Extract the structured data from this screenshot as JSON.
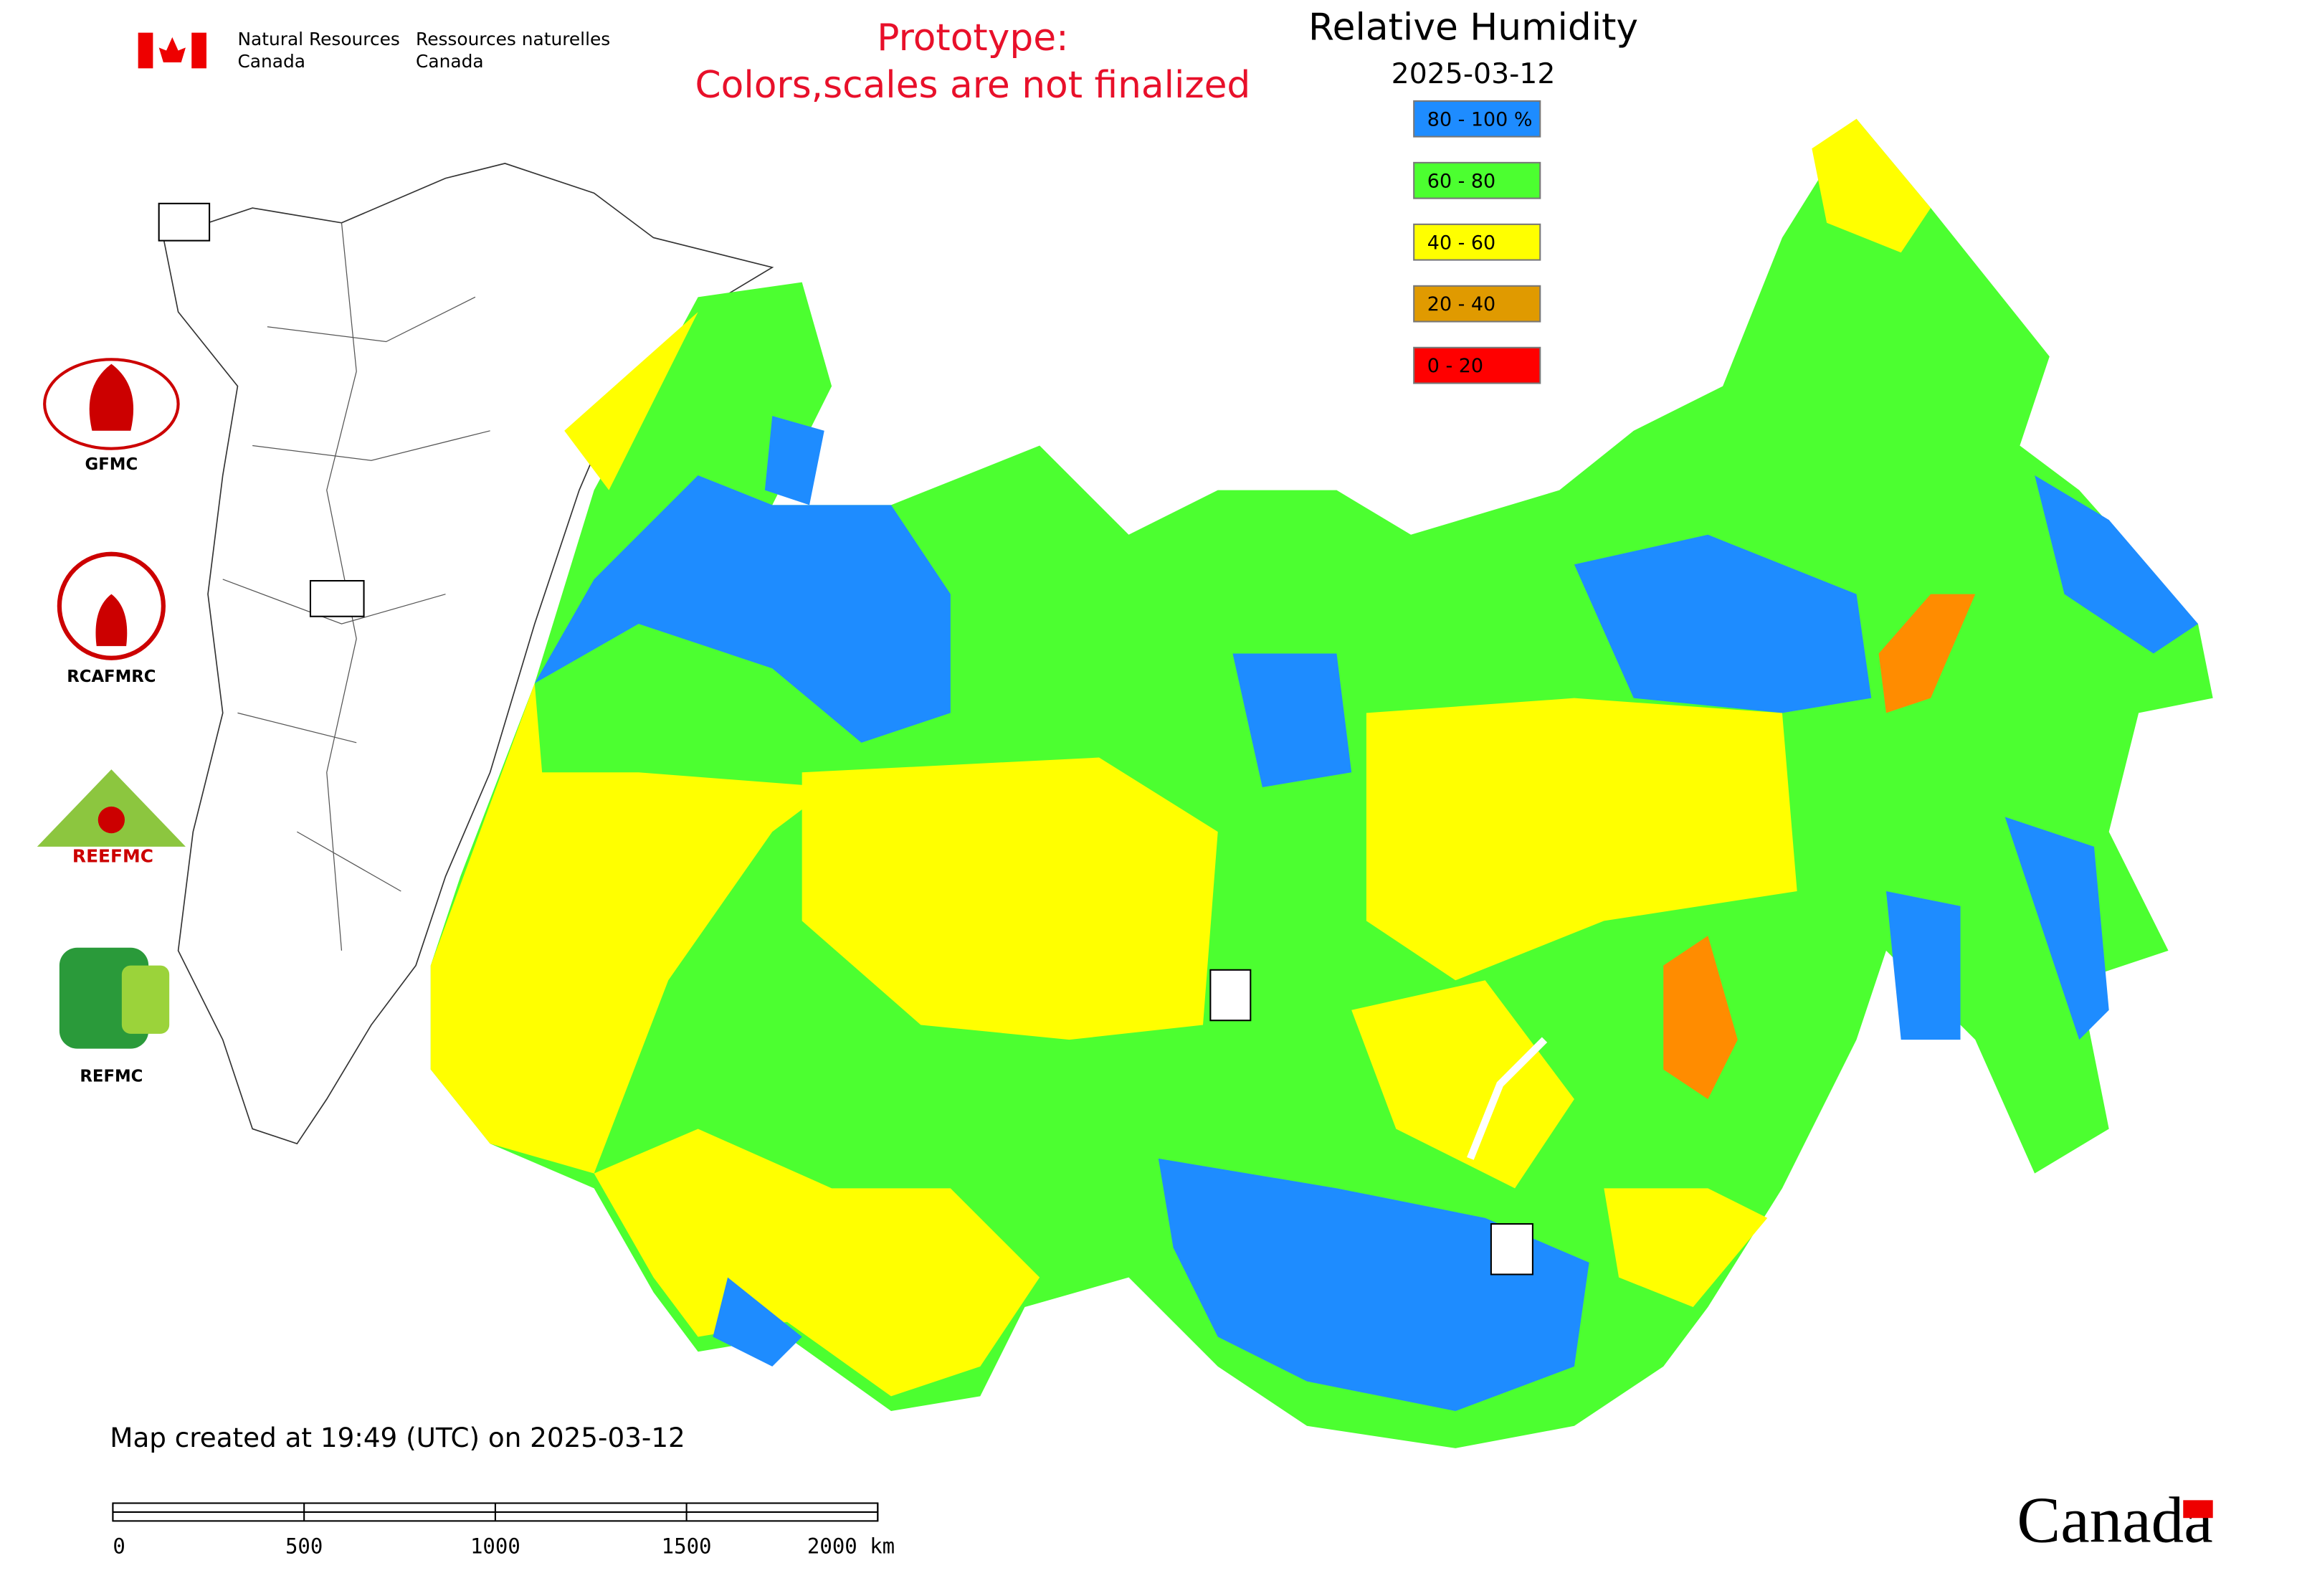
{
  "header": {
    "org_en": [
      "Natural Resources",
      "Canada"
    ],
    "org_fr": [
      "Ressources naturelles",
      "Canada"
    ],
    "notice": [
      "Prototype:",
      "Colors,scales are not finalized"
    ]
  },
  "title": "Relative Humidity",
  "date": "2025-03-12",
  "legend": [
    {
      "label": "80 - 100 %",
      "color": "#1e8cff"
    },
    {
      "label": "60 - 80",
      "color": "#4cff30"
    },
    {
      "label": "40 - 60",
      "color": "#ffff00"
    },
    {
      "label": "20 - 40",
      "color": "#e09a00"
    },
    {
      "label": "0 - 20",
      "color": "#ff0000"
    }
  ],
  "logos": [
    "GFMC",
    "RCAFMRC",
    "REEFMC",
    "REFMC"
  ],
  "footer": {
    "created": "Map created at 19:49 (UTC) on 2025-03-12",
    "scale_labels": [
      "0",
      "500",
      "1000",
      "1500",
      "2000 km"
    ],
    "wordmark": "Canada"
  }
}
